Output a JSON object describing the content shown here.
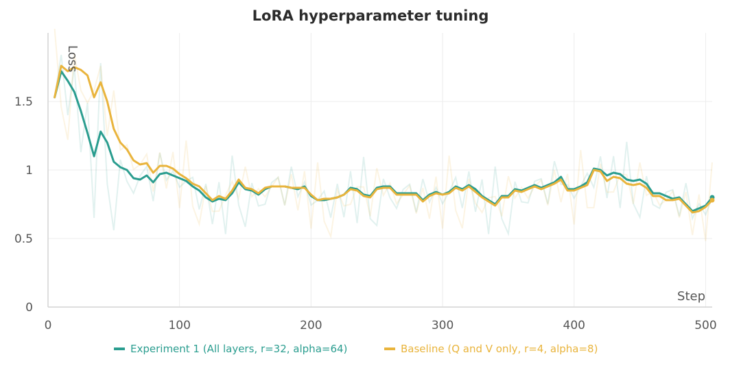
{
  "chart_data": {
    "type": "line",
    "title": "LoRA hyperparameter tuning",
    "xlabel": "Step",
    "ylabel": "Loss",
    "xlim": [
      0,
      505
    ],
    "ylim": [
      0,
      2.0
    ],
    "x_ticks": [
      0,
      100,
      200,
      300,
      400,
      500
    ],
    "x_tick_labels": [
      "0",
      "100",
      "200",
      "300",
      "400",
      "500"
    ],
    "y_ticks": [
      0,
      0.5,
      1,
      1.5
    ],
    "y_tick_labels": [
      "0",
      "0.5",
      "1",
      "1.5"
    ],
    "grid": true,
    "legend_position": "bottom",
    "series": [
      {
        "name": "Experiment 1 (All layers, r=32, alpha=64)",
        "color": "#2a9d8f",
        "x": [
          5,
          10,
          15,
          20,
          25,
          30,
          35,
          40,
          45,
          50,
          55,
          60,
          65,
          70,
          75,
          80,
          85,
          90,
          95,
          100,
          105,
          110,
          115,
          120,
          125,
          130,
          135,
          140,
          145,
          150,
          155,
          160,
          165,
          170,
          175,
          180,
          185,
          190,
          195,
          200,
          205,
          210,
          215,
          220,
          225,
          230,
          235,
          240,
          245,
          250,
          255,
          260,
          265,
          270,
          275,
          280,
          285,
          290,
          295,
          300,
          305,
          310,
          315,
          320,
          325,
          330,
          335,
          340,
          345,
          350,
          355,
          360,
          365,
          370,
          375,
          380,
          385,
          390,
          395,
          400,
          405,
          410,
          415,
          420,
          425,
          430,
          435,
          440,
          445,
          450,
          455,
          460,
          465,
          470,
          475,
          480,
          485,
          490,
          495,
          500,
          505
        ],
        "values": [
          1.53,
          1.72,
          1.65,
          1.57,
          1.43,
          1.27,
          1.1,
          1.28,
          1.2,
          1.06,
          1.02,
          1.0,
          0.94,
          0.93,
          0.96,
          0.91,
          0.97,
          0.98,
          0.96,
          0.94,
          0.92,
          0.88,
          0.85,
          0.8,
          0.77,
          0.79,
          0.78,
          0.83,
          0.91,
          0.86,
          0.85,
          0.82,
          0.86,
          0.88,
          0.88,
          0.88,
          0.87,
          0.86,
          0.88,
          0.81,
          0.78,
          0.78,
          0.79,
          0.8,
          0.82,
          0.87,
          0.86,
          0.82,
          0.81,
          0.87,
          0.88,
          0.88,
          0.83,
          0.83,
          0.83,
          0.83,
          0.78,
          0.82,
          0.84,
          0.82,
          0.84,
          0.88,
          0.86,
          0.89,
          0.86,
          0.81,
          0.78,
          0.75,
          0.81,
          0.81,
          0.86,
          0.85,
          0.87,
          0.89,
          0.87,
          0.89,
          0.91,
          0.95,
          0.86,
          0.86,
          0.88,
          0.91,
          1.01,
          1.0,
          0.96,
          0.98,
          0.97,
          0.93,
          0.92,
          0.93,
          0.9,
          0.83,
          0.83,
          0.81,
          0.79,
          0.8,
          0.75,
          0.7,
          0.72,
          0.74,
          0.8
        ]
      },
      {
        "name": "Baseline (Q and V only, r=4, alpha=8)",
        "color": "#e9b43c",
        "x": [
          5,
          10,
          15,
          20,
          25,
          30,
          35,
          40,
          45,
          50,
          55,
          60,
          65,
          70,
          75,
          80,
          85,
          90,
          95,
          100,
          105,
          110,
          115,
          120,
          125,
          130,
          135,
          140,
          145,
          150,
          155,
          160,
          165,
          170,
          175,
          180,
          185,
          190,
          195,
          200,
          205,
          210,
          215,
          220,
          225,
          230,
          235,
          240,
          245,
          250,
          255,
          260,
          265,
          270,
          275,
          280,
          285,
          290,
          295,
          300,
          305,
          310,
          315,
          320,
          325,
          330,
          335,
          340,
          345,
          350,
          355,
          360,
          365,
          370,
          375,
          380,
          385,
          390,
          395,
          400,
          405,
          410,
          415,
          420,
          425,
          430,
          435,
          440,
          445,
          450,
          455,
          460,
          465,
          470,
          475,
          480,
          485,
          490,
          495,
          500,
          505
        ],
        "values": [
          1.53,
          1.76,
          1.72,
          1.75,
          1.73,
          1.69,
          1.53,
          1.64,
          1.5,
          1.3,
          1.2,
          1.15,
          1.07,
          1.04,
          1.05,
          0.98,
          1.03,
          1.03,
          1.01,
          0.97,
          0.94,
          0.9,
          0.88,
          0.83,
          0.78,
          0.81,
          0.79,
          0.85,
          0.93,
          0.87,
          0.86,
          0.83,
          0.87,
          0.88,
          0.88,
          0.88,
          0.87,
          0.87,
          0.87,
          0.82,
          0.78,
          0.79,
          0.79,
          0.8,
          0.82,
          0.86,
          0.85,
          0.81,
          0.8,
          0.86,
          0.87,
          0.87,
          0.82,
          0.82,
          0.82,
          0.82,
          0.77,
          0.81,
          0.83,
          0.82,
          0.83,
          0.87,
          0.85,
          0.88,
          0.84,
          0.8,
          0.77,
          0.74,
          0.8,
          0.8,
          0.85,
          0.84,
          0.86,
          0.88,
          0.86,
          0.88,
          0.9,
          0.93,
          0.85,
          0.85,
          0.87,
          0.89,
          1.0,
          0.99,
          0.92,
          0.95,
          0.94,
          0.9,
          0.89,
          0.9,
          0.87,
          0.81,
          0.81,
          0.78,
          0.78,
          0.79,
          0.74,
          0.69,
          0.7,
          0.73,
          0.78
        ]
      }
    ]
  }
}
